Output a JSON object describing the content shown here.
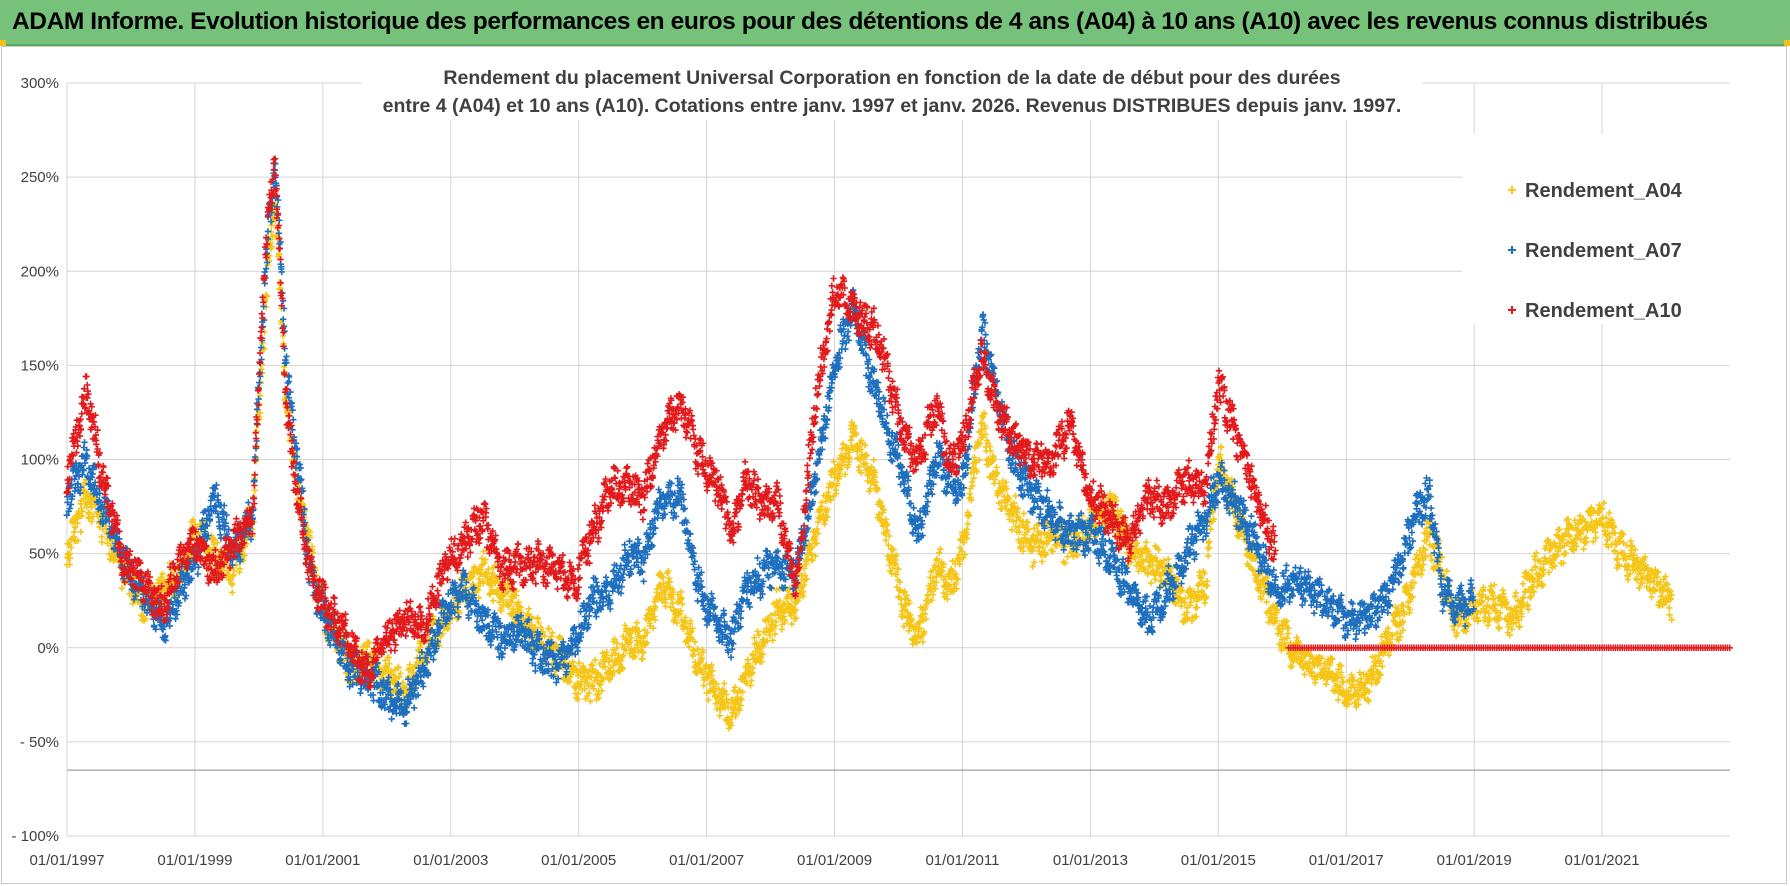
{
  "banner": {
    "title": "ADAM Informe. Evolution historique des performances en euros pour des détentions de 4 ans (A04) à 10 ans (A10) avec les revenus connus distribués"
  },
  "chart_data": {
    "type": "scatter",
    "title_line1": "Rendement du placement Universal Corporation en fonction de la date de début pour des durées",
    "title_line2": "entre 4 (A04) et 10 ans (A10).  Cotations entre janv. 1997 et janv. 2026. Revenus DISTRIBUES  depuis janv. 1997.",
    "xlabel": "",
    "ylabel": "",
    "xlim": [
      1997.0,
      2023.0
    ],
    "ylim": [
      -100,
      300
    ],
    "y_ticks": [
      300,
      250,
      200,
      150,
      100,
      50,
      0,
      -50,
      -100
    ],
    "y_tick_labels": [
      "300%",
      "250%",
      "200%",
      "150%",
      "100%",
      "50%",
      "0%",
      "- 50%",
      "- 100%"
    ],
    "x_ticks": [
      1997,
      1999,
      2001,
      2003,
      2005,
      2007,
      2009,
      2011,
      2013,
      2015,
      2017,
      2019,
      2021
    ],
    "x_tick_labels": [
      "01/01/1997",
      "01/01/1999",
      "01/01/2001",
      "01/01/2003",
      "01/01/2005",
      "01/01/2007",
      "01/01/2009",
      "01/01/2011",
      "01/01/2013",
      "01/01/2015",
      "01/01/2017",
      "01/01/2019",
      "01/01/2021"
    ],
    "marker": "+",
    "legend_position": "top-right",
    "series": [
      {
        "name": "Rendement_A04",
        "color": "#f5c518",
        "x_end": 2022.1,
        "points": [
          [
            1997.0,
            50
          ],
          [
            1997.3,
            80
          ],
          [
            1997.6,
            65
          ],
          [
            1997.9,
            40
          ],
          [
            1998.2,
            25
          ],
          [
            1998.5,
            30
          ],
          [
            1998.8,
            40
          ],
          [
            1999.0,
            60
          ],
          [
            1999.3,
            50
          ],
          [
            1999.6,
            40
          ],
          [
            1999.9,
            70
          ],
          [
            2000.1,
            180
          ],
          [
            2000.25,
            240
          ],
          [
            2000.45,
            120
          ],
          [
            2000.6,
            90
          ],
          [
            2000.8,
            50
          ],
          [
            2001.0,
            20
          ],
          [
            2001.4,
            -10
          ],
          [
            2001.7,
            -5
          ],
          [
            2002.0,
            -15
          ],
          [
            2002.3,
            -25
          ],
          [
            2002.6,
            0
          ],
          [
            2002.9,
            15
          ],
          [
            2003.2,
            30
          ],
          [
            2003.5,
            40
          ],
          [
            2003.8,
            30
          ],
          [
            2004.1,
            15
          ],
          [
            2004.4,
            5
          ],
          [
            2004.7,
            -5
          ],
          [
            2004.95,
            -15
          ],
          [
            2005.2,
            -20
          ],
          [
            2005.5,
            -10
          ],
          [
            2005.8,
            5
          ],
          [
            2006.0,
            0
          ],
          [
            2006.3,
            35
          ],
          [
            2006.6,
            20
          ],
          [
            2006.9,
            -10
          ],
          [
            2007.2,
            -25
          ],
          [
            2007.4,
            -35
          ],
          [
            2007.6,
            -15
          ],
          [
            2007.9,
            5
          ],
          [
            2008.1,
            20
          ],
          [
            2008.4,
            25
          ],
          [
            2008.7,
            60
          ],
          [
            2009.0,
            90
          ],
          [
            2009.3,
            110
          ],
          [
            2009.6,
            90
          ],
          [
            2009.8,
            60
          ],
          [
            2010.1,
            20
          ],
          [
            2010.3,
            5
          ],
          [
            2010.6,
            45
          ],
          [
            2010.8,
            30
          ],
          [
            2011.0,
            50
          ],
          [
            2011.3,
            120
          ],
          [
            2011.5,
            90
          ],
          [
            2011.8,
            70
          ],
          [
            2012.1,
            55
          ],
          [
            2012.4,
            60
          ],
          [
            2012.7,
            55
          ],
          [
            2013.0,
            65
          ],
          [
            2013.3,
            75
          ],
          [
            2013.6,
            55
          ],
          [
            2013.9,
            45
          ],
          [
            2014.2,
            40
          ],
          [
            2014.5,
            20
          ],
          [
            2014.8,
            35
          ],
          [
            2015.0,
            100
          ],
          [
            2015.3,
            70
          ],
          [
            2015.6,
            40
          ],
          [
            2015.9,
            15
          ],
          [
            2016.2,
            -5
          ],
          [
            2016.5,
            -10
          ],
          [
            2016.8,
            -15
          ],
          [
            2017.0,
            -25
          ],
          [
            2017.3,
            -20
          ],
          [
            2017.6,
            0
          ],
          [
            2017.9,
            20
          ],
          [
            2018.1,
            40
          ],
          [
            2018.3,
            60
          ],
          [
            2018.5,
            40
          ],
          [
            2018.7,
            15
          ],
          [
            2019.0,
            20
          ],
          [
            2019.3,
            25
          ],
          [
            2019.6,
            15
          ],
          [
            2019.9,
            35
          ],
          [
            2020.2,
            50
          ],
          [
            2020.5,
            60
          ],
          [
            2020.8,
            65
          ],
          [
            2021.0,
            70
          ],
          [
            2021.2,
            55
          ],
          [
            2021.5,
            45
          ],
          [
            2021.8,
            35
          ],
          [
            2022.1,
            25
          ]
        ]
      },
      {
        "name": "Rendement_A07",
        "color": "#1f6fbf",
        "x_end": 2019.0,
        "points": [
          [
            1997.0,
            80
          ],
          [
            1997.3,
            100
          ],
          [
            1997.6,
            70
          ],
          [
            1997.9,
            45
          ],
          [
            1998.2,
            30
          ],
          [
            1998.5,
            10
          ],
          [
            1998.8,
            35
          ],
          [
            1999.0,
            45
          ],
          [
            1999.3,
            80
          ],
          [
            1999.6,
            50
          ],
          [
            1999.9,
            70
          ],
          [
            2000.1,
            200
          ],
          [
            2000.25,
            260
          ],
          [
            2000.45,
            140
          ],
          [
            2000.6,
            100
          ],
          [
            2000.8,
            40
          ],
          [
            2001.0,
            20
          ],
          [
            2001.4,
            -10
          ],
          [
            2001.7,
            -15
          ],
          [
            2002.0,
            -25
          ],
          [
            2002.3,
            -30
          ],
          [
            2002.6,
            -10
          ],
          [
            2002.9,
            20
          ],
          [
            2003.2,
            30
          ],
          [
            2003.5,
            15
          ],
          [
            2003.8,
            5
          ],
          [
            2004.1,
            10
          ],
          [
            2004.4,
            -5
          ],
          [
            2004.7,
            -10
          ],
          [
            2004.95,
            5
          ],
          [
            2005.2,
            25
          ],
          [
            2005.5,
            30
          ],
          [
            2005.8,
            50
          ],
          [
            2006.0,
            45
          ],
          [
            2006.3,
            80
          ],
          [
            2006.6,
            80
          ],
          [
            2006.9,
            30
          ],
          [
            2007.2,
            10
          ],
          [
            2007.4,
            5
          ],
          [
            2007.6,
            30
          ],
          [
            2007.9,
            40
          ],
          [
            2008.1,
            45
          ],
          [
            2008.4,
            40
          ],
          [
            2008.7,
            90
          ],
          [
            2009.0,
            150
          ],
          [
            2009.3,
            180
          ],
          [
            2009.6,
            140
          ],
          [
            2009.8,
            120
          ],
          [
            2010.1,
            90
          ],
          [
            2010.3,
            60
          ],
          [
            2010.6,
            100
          ],
          [
            2010.8,
            90
          ],
          [
            2011.0,
            85
          ],
          [
            2011.3,
            170
          ],
          [
            2011.5,
            140
          ],
          [
            2011.8,
            100
          ],
          [
            2012.1,
            80
          ],
          [
            2012.4,
            70
          ],
          [
            2012.7,
            60
          ],
          [
            2013.0,
            60
          ],
          [
            2013.3,
            50
          ],
          [
            2013.6,
            30
          ],
          [
            2013.9,
            15
          ],
          [
            2014.2,
            30
          ],
          [
            2014.5,
            50
          ],
          [
            2014.8,
            70
          ],
          [
            2015.0,
            90
          ],
          [
            2015.3,
            75
          ],
          [
            2015.6,
            55
          ],
          [
            2015.9,
            30
          ],
          [
            2016.2,
            35
          ],
          [
            2016.5,
            30
          ],
          [
            2016.8,
            20
          ],
          [
            2017.0,
            15
          ],
          [
            2017.3,
            15
          ],
          [
            2017.6,
            25
          ],
          [
            2017.9,
            50
          ],
          [
            2018.1,
            75
          ],
          [
            2018.3,
            80
          ],
          [
            2018.5,
            30
          ],
          [
            2018.7,
            20
          ],
          [
            2019.0,
            25
          ]
        ]
      },
      {
        "name": "Rendement_A10",
        "color": "#e31a1c",
        "x_end": 2023.0,
        "points": [
          [
            1997.0,
            90
          ],
          [
            1997.3,
            135
          ],
          [
            1997.6,
            85
          ],
          [
            1997.9,
            45
          ],
          [
            1998.2,
            35
          ],
          [
            1998.5,
            20
          ],
          [
            1998.8,
            50
          ],
          [
            1999.0,
            55
          ],
          [
            1999.3,
            40
          ],
          [
            1999.6,
            55
          ],
          [
            1999.9,
            70
          ],
          [
            2000.1,
            210
          ],
          [
            2000.25,
            260
          ],
          [
            2000.45,
            120
          ],
          [
            2000.6,
            80
          ],
          [
            2000.8,
            40
          ],
          [
            2001.0,
            25
          ],
          [
            2001.4,
            5
          ],
          [
            2001.7,
            -15
          ],
          [
            2002.0,
            5
          ],
          [
            2002.3,
            15
          ],
          [
            2002.6,
            10
          ],
          [
            2002.9,
            45
          ],
          [
            2003.2,
            55
          ],
          [
            2003.5,
            70
          ],
          [
            2003.8,
            40
          ],
          [
            2004.1,
            45
          ],
          [
            2004.4,
            45
          ],
          [
            2004.7,
            40
          ],
          [
            2004.95,
            35
          ],
          [
            2005.2,
            60
          ],
          [
            2005.5,
            85
          ],
          [
            2005.8,
            85
          ],
          [
            2006.0,
            80
          ],
          [
            2006.3,
            115
          ],
          [
            2006.6,
            130
          ],
          [
            2006.9,
            100
          ],
          [
            2007.2,
            85
          ],
          [
            2007.4,
            60
          ],
          [
            2007.6,
            90
          ],
          [
            2007.9,
            75
          ],
          [
            2008.1,
            80
          ],
          [
            2008.4,
            30
          ],
          [
            2008.7,
            130
          ],
          [
            2009.0,
            190
          ],
          [
            2009.3,
            180
          ],
          [
            2009.6,
            170
          ],
          [
            2009.8,
            150
          ],
          [
            2010.1,
            110
          ],
          [
            2010.3,
            100
          ],
          [
            2010.6,
            130
          ],
          [
            2010.8,
            95
          ],
          [
            2011.0,
            110
          ],
          [
            2011.3,
            155
          ],
          [
            2011.5,
            130
          ],
          [
            2011.8,
            110
          ],
          [
            2012.1,
            100
          ],
          [
            2012.4,
            100
          ],
          [
            2012.7,
            120
          ],
          [
            2013.0,
            80
          ],
          [
            2013.3,
            70
          ],
          [
            2013.6,
            55
          ],
          [
            2013.9,
            80
          ],
          [
            2014.2,
            75
          ],
          [
            2014.5,
            90
          ],
          [
            2014.8,
            85
          ],
          [
            2015.0,
            140
          ],
          [
            2015.3,
            110
          ],
          [
            2015.6,
            80
          ],
          [
            2015.9,
            50
          ]
        ],
        "zero_segment": [
          2016.1,
          2023.0
        ]
      }
    ],
    "legend": [
      {
        "label": "Rendement_A04",
        "color": "#f5c518"
      },
      {
        "label": "Rendement_A07",
        "color": "#1f6fbf"
      },
      {
        "label": "Rendement_A10",
        "color": "#e31a1c"
      }
    ]
  }
}
